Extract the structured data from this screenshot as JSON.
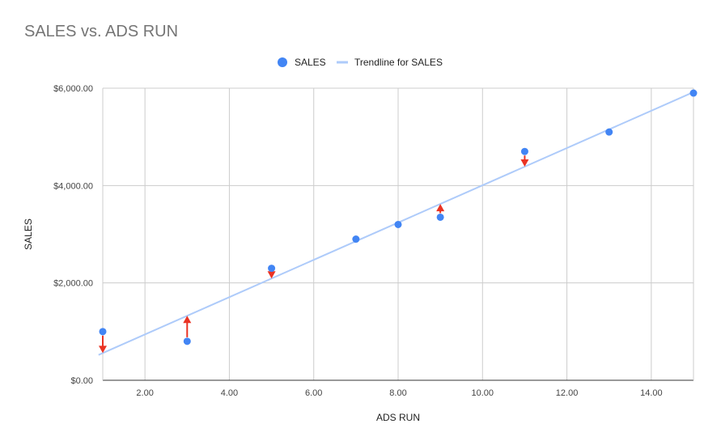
{
  "chart_data": {
    "type": "scatter",
    "title": "SALES vs. ADS RUN",
    "xlabel": "ADS RUN",
    "ylabel": "SALES",
    "xlim": [
      1,
      15
    ],
    "ylim": [
      0,
      6000
    ],
    "x_ticks": [
      2,
      4,
      6,
      8,
      10,
      12,
      14
    ],
    "x_tick_labels": [
      "2.00",
      "4.00",
      "6.00",
      "8.00",
      "10.00",
      "12.00",
      "14.00"
    ],
    "y_ticks": [
      0,
      2000,
      4000,
      6000
    ],
    "y_tick_labels": [
      "$0.00",
      "$2,000.00",
      "$4,000.00",
      "$6,000.00"
    ],
    "grid": true,
    "legend_position": "top",
    "series": [
      {
        "name": "SALES",
        "color": "#4285f4",
        "points": [
          {
            "x": 1,
            "y": 1000
          },
          {
            "x": 3,
            "y": 800
          },
          {
            "x": 5,
            "y": 2300
          },
          {
            "x": 7,
            "y": 2900
          },
          {
            "x": 8,
            "y": 3200
          },
          {
            "x": 9,
            "y": 3350
          },
          {
            "x": 11,
            "y": 4700
          },
          {
            "x": 13,
            "y": 5100
          },
          {
            "x": 15,
            "y": 5900
          }
        ]
      }
    ],
    "trendline": {
      "name": "Trendline for SALES",
      "color": "#aecbfa",
      "slope": 382.9,
      "intercept": 176,
      "x_range": [
        1,
        15
      ]
    },
    "residual_arrows": {
      "color": "#ea3323",
      "points": [
        1,
        3,
        5,
        9,
        11
      ]
    }
  }
}
